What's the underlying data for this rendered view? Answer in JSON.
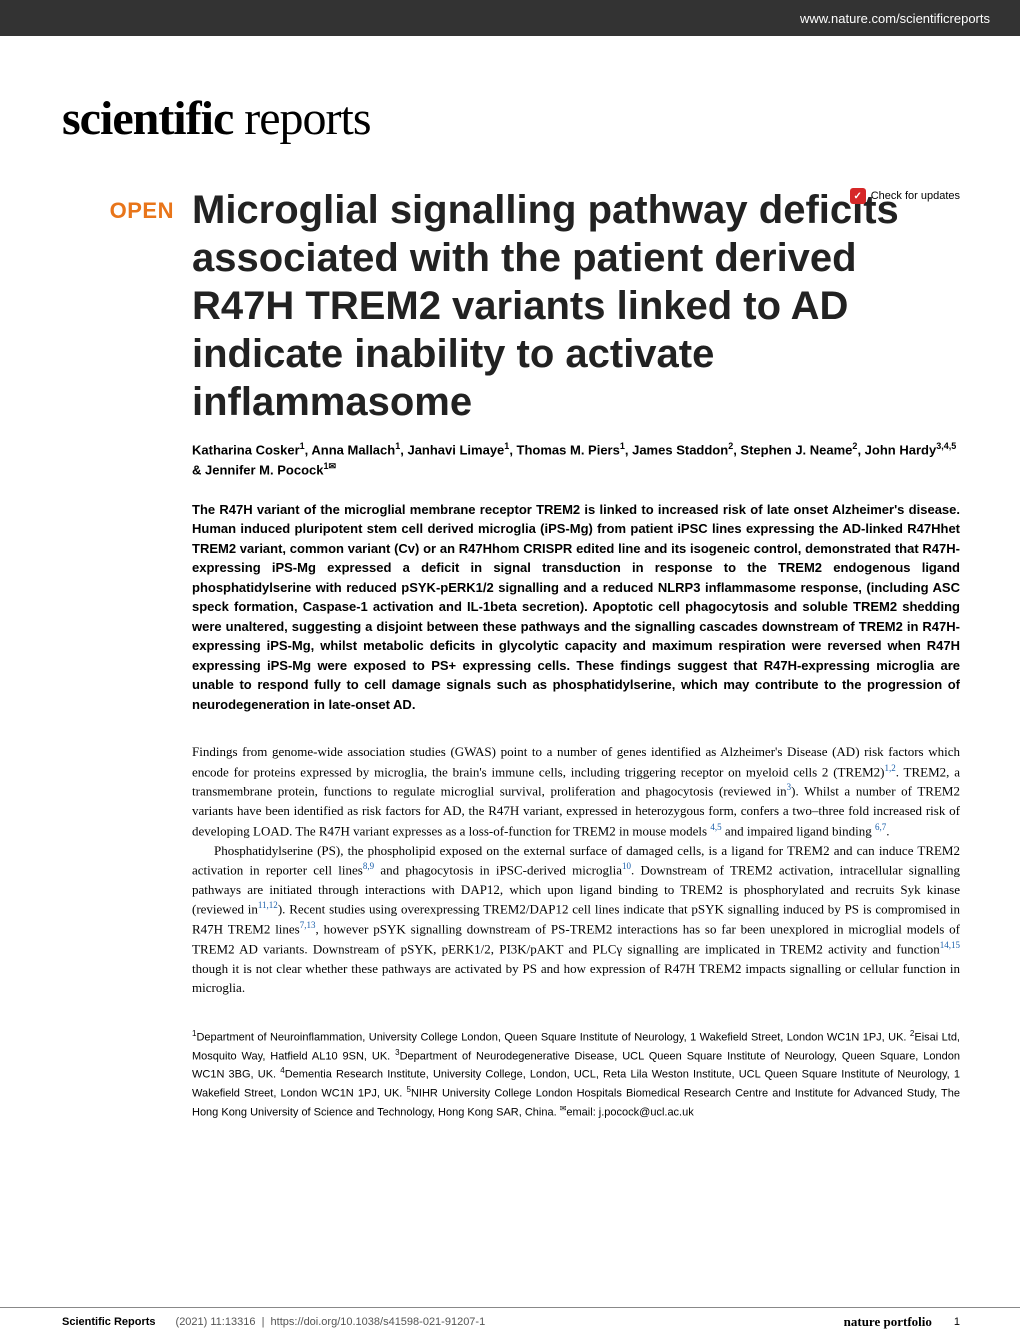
{
  "header": {
    "site_url": "www.nature.com/scientificreports"
  },
  "journal_logo": {
    "bold": "scientific",
    "light": " reports"
  },
  "check_updates": {
    "label": "Check for updates"
  },
  "open_label": "OPEN",
  "article": {
    "title": "Microglial signalling pathway deficits associated with the patient derived R47H TREM2 variants linked to AD indicate inability to activate inflammasome",
    "authors_html": "Katharina Cosker<sup>1</sup>, Anna Mallach<sup>1</sup>, Janhavi Limaye<sup>1</sup>, Thomas M. Piers<sup>1</sup>, James Staddon<sup>2</sup>, Stephen J. Neame<sup>2</sup>, John Hardy<sup>3,4,5</sup> & Jennifer M. Pocock<sup>1✉</sup>",
    "abstract": "The R47H variant of the microglial membrane receptor TREM2 is linked to increased risk of late onset Alzheimer's disease. Human induced pluripotent stem cell derived microglia (iPS-Mg) from patient iPSC lines expressing the AD-linked R47Hhet TREM2 variant, common variant (Cv) or an R47Hhom CRISPR edited line and its isogeneic control, demonstrated that R47H-expressing iPS-Mg expressed a deficit in signal transduction in response to the TREM2 endogenous ligand phosphatidylserine with reduced pSYK-pERK1/2 signalling and a reduced NLRP3 inflammasome response, (including ASC speck formation, Caspase-1 activation and IL-1beta secretion). Apoptotic cell phagocytosis and soluble TREM2 shedding were unaltered, suggesting a disjoint between these pathways and the signalling cascades downstream of TREM2 in R47H-expressing iPS-Mg, whilst metabolic deficits in glycolytic capacity and maximum respiration were reversed when R47H expressing iPS-Mg were exposed to PS+ expressing cells. These findings suggest that R47H-expressing microglia are unable to respond fully to cell damage signals such as phosphatidylserine, which may contribute to the progression of neurodegeneration in late-onset AD.",
    "body_p1": "Findings from genome-wide association studies (GWAS) point to a number of genes identified as Alzheimer's Disease (AD) risk factors which encode for proteins expressed by microglia, the brain's immune cells, including triggering receptor on myeloid cells 2 (TREM2)",
    "body_p1_ref1": "1,2",
    "body_p1_cont": ". TREM2, a transmembrane protein, functions to regulate microglial survival, proliferation and phagocytosis (reviewed in",
    "body_p1_ref2": "3",
    "body_p1_cont2": "). Whilst a number of TREM2 variants have been identified as risk factors for AD, the R47H variant, expressed in heterozygous form, confers a two–three fold increased risk of developing LOAD. The R47H variant expresses as a loss-of-function for TREM2 in mouse models ",
    "body_p1_ref3": "4,5",
    "body_p1_cont3": " and impaired ligand binding ",
    "body_p1_ref4": "6,7",
    "body_p1_end": ".",
    "body_p2_start": "Phosphatidylserine (PS), the phospholipid exposed on the external surface of damaged cells, is a ligand for TREM2 and can induce TREM2 activation in reporter cell lines",
    "body_p2_ref1": "8,9",
    "body_p2_cont1": " and phagocytosis in iPSC-derived microglia",
    "body_p2_ref2": "10",
    "body_p2_cont2": ". Downstream of TREM2 activation, intracellular signalling pathways are initiated through interactions with DAP12, which upon ligand binding to TREM2 is phosphorylated and recruits Syk kinase (reviewed in",
    "body_p2_ref3": "11,12",
    "body_p2_cont3": "). Recent studies using overexpressing TREM2/DAP12 cell lines indicate that pSYK signalling induced by PS is compromised in R47H TREM2 lines",
    "body_p2_ref4": "7,13",
    "body_p2_cont4": ", however pSYK signalling downstream of PS-TREM2 interactions has so far been unexplored in microglial models of TREM2 AD variants. Downstream of pSYK, pERK1/2, PI3K/pAKT and PLCγ signalling are implicated in TREM2 activity and function",
    "body_p2_ref5": "14,15",
    "body_p2_cont5": " though it is not clear whether these pathways are activated by PS and how expression of R47H TREM2 impacts signalling or cellular function in microglia.",
    "affiliations": "<sup>1</sup>Department of Neuroinflammation, University College London, Queen Square Institute of Neurology, 1 Wakefield Street, London WC1N 1PJ, UK. <sup>2</sup>Eisai Ltd, Mosquito Way, Hatfield AL10 9SN, UK. <sup>3</sup>Department of Neurodegenerative Disease, UCL Queen Square Institute of Neurology, Queen Square, London WC1N 3BG, UK. <sup>4</sup>Dementia Research Institute, University College, London, UCL, Reta Lila Weston Institute, UCL Queen Square Institute of Neurology, 1 Wakefield Street, London WC1N 1PJ, UK. <sup>5</sup>NIHR University College London Hospitals Biomedical Research Centre and Institute for Advanced Study, The Hong Kong University of Science and Technology, Hong Kong SAR, China. <sup>✉</sup>email: j.pocock@ucl.ac.uk"
  },
  "footer": {
    "journal": "Scientific Reports",
    "citation": "(2021) 11:13316",
    "doi": "https://doi.org/10.1038/s41598-021-91207-1",
    "portfolio": "nature portfolio",
    "page": "1"
  },
  "colors": {
    "header_bg": "#333333",
    "open_orange": "#e8751a",
    "update_red": "#d62728",
    "ref_blue": "#1a5faa"
  },
  "typography": {
    "title_size": 40,
    "body_size": 13,
    "abstract_size": 13,
    "footer_size": 11
  }
}
